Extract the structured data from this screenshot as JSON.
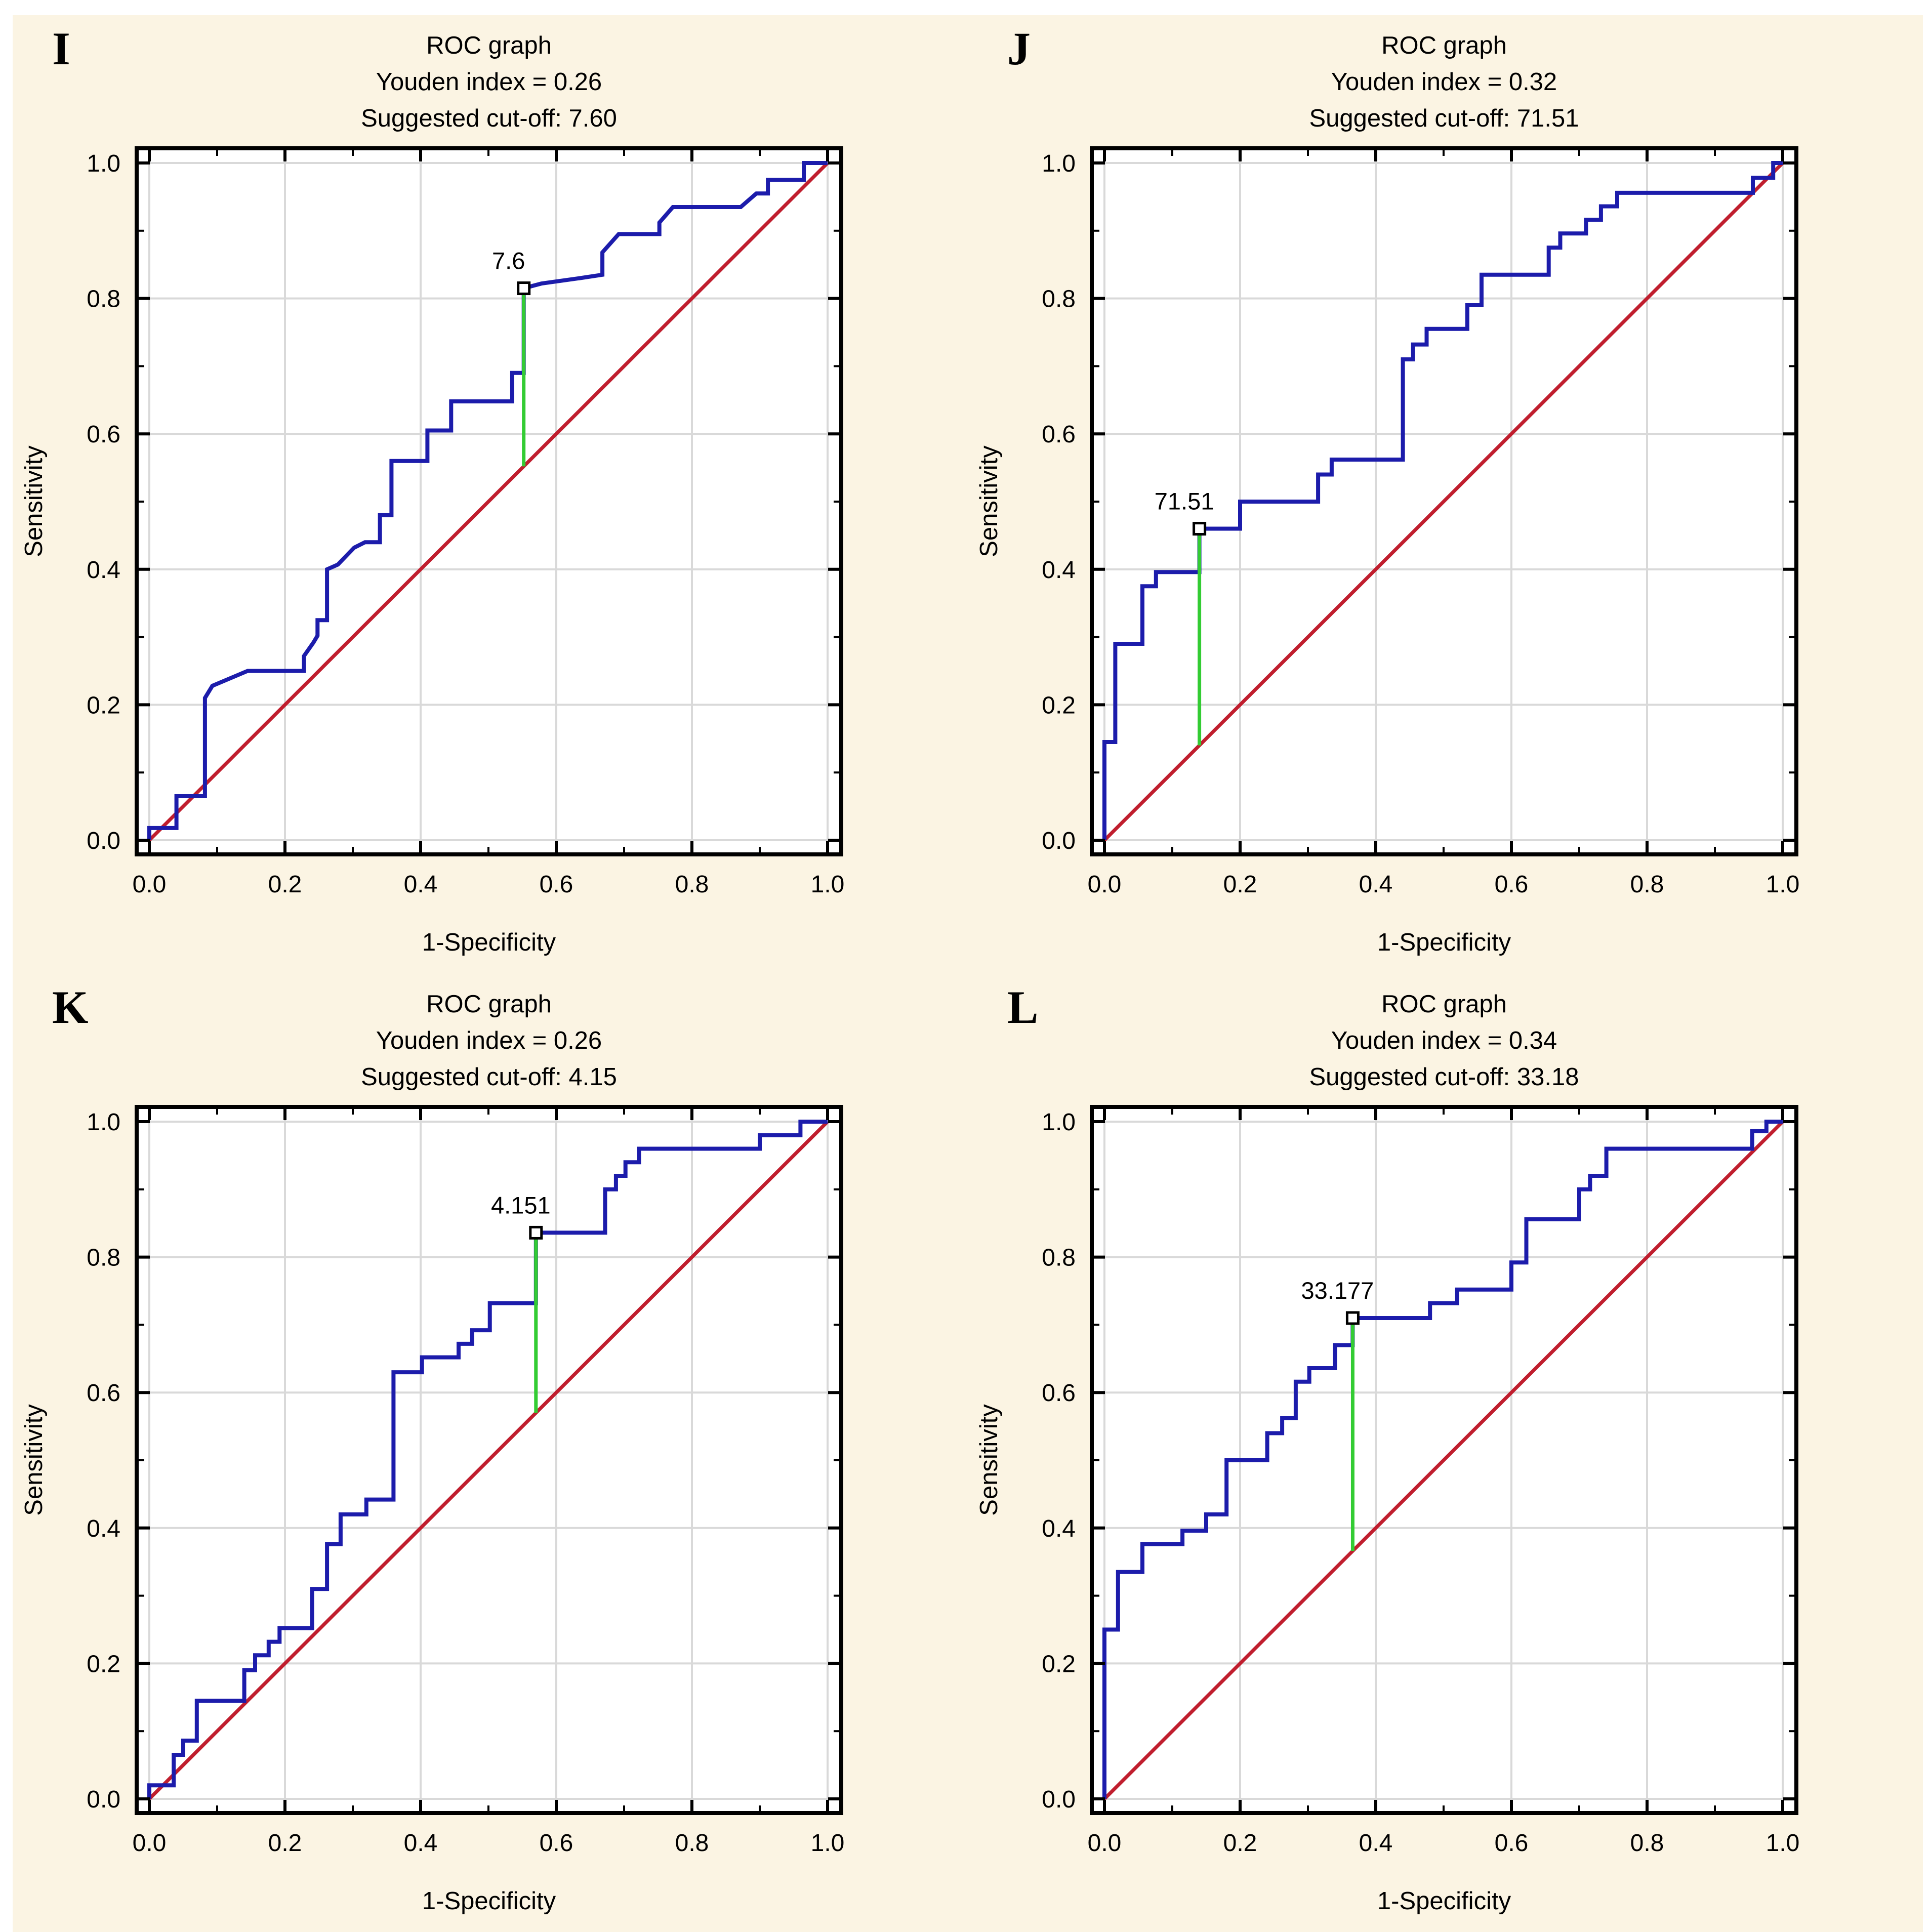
{
  "page": {
    "background": "#ffffff",
    "panel_background": "#FBF4E3"
  },
  "colors": {
    "roc_curve": "#1C1CAB",
    "diagonal": "#C01E2E",
    "cutoff_line": "#33CC33",
    "grid": "#D9D9D9",
    "frame": "#000000",
    "plot_background": "#FFFFFF",
    "marker_fill": "#FFFFFF",
    "text": "#000000"
  },
  "axes": {
    "x_label": "1-Specificity",
    "y_label": "Sensitivity",
    "major_ticks": [
      0.0,
      0.2,
      0.4,
      0.6,
      0.8,
      1.0
    ],
    "minor_step": 0.1,
    "xlim": [
      0,
      1
    ],
    "ylim": [
      0,
      1
    ],
    "grid": "on"
  },
  "chart_data": [
    {
      "type": "line",
      "panel_label": "I",
      "title": "ROC graph",
      "subtitle_youden": "Youden index = 0.26",
      "subtitle_cutoff": "Suggested cut-off: 7.60",
      "xlabel": "1-Specificity",
      "ylabel": "Sensitivity",
      "xlim": [
        0,
        1
      ],
      "ylim": [
        0,
        1
      ],
      "cutoff_point_label": "7.6",
      "cutoff_point": {
        "x": 0.552,
        "y": 0.815
      },
      "cutoff_line": {
        "x": 0.552,
        "y_from": 0.552,
        "y_to": 0.815
      },
      "diagonal": [
        [
          0,
          0
        ],
        [
          1,
          1
        ]
      ],
      "roc_points": [
        [
          0,
          0
        ],
        [
          0,
          0.018
        ],
        [
          0.04,
          0.018
        ],
        [
          0.04,
          0.065
        ],
        [
          0.082,
          0.065
        ],
        [
          0.082,
          0.21
        ],
        [
          0.093,
          0.228
        ],
        [
          0.145,
          0.25
        ],
        [
          0.228,
          0.25
        ],
        [
          0.228,
          0.272
        ],
        [
          0.242,
          0.292
        ],
        [
          0.248,
          0.302
        ],
        [
          0.248,
          0.325
        ],
        [
          0.262,
          0.325
        ],
        [
          0.262,
          0.4
        ],
        [
          0.278,
          0.407
        ],
        [
          0.302,
          0.432
        ],
        [
          0.318,
          0.44
        ],
        [
          0.34,
          0.44
        ],
        [
          0.34,
          0.48
        ],
        [
          0.357,
          0.48
        ],
        [
          0.357,
          0.56
        ],
        [
          0.41,
          0.56
        ],
        [
          0.41,
          0.605
        ],
        [
          0.445,
          0.605
        ],
        [
          0.445,
          0.648
        ],
        [
          0.535,
          0.648
        ],
        [
          0.535,
          0.69
        ],
        [
          0.552,
          0.69
        ],
        [
          0.552,
          0.815
        ],
        [
          0.578,
          0.822
        ],
        [
          0.635,
          0.83
        ],
        [
          0.668,
          0.835
        ],
        [
          0.668,
          0.868
        ],
        [
          0.692,
          0.895
        ],
        [
          0.752,
          0.895
        ],
        [
          0.752,
          0.912
        ],
        [
          0.772,
          0.935
        ],
        [
          0.872,
          0.935
        ],
        [
          0.895,
          0.955
        ],
        [
          0.912,
          0.955
        ],
        [
          0.912,
          0.975
        ],
        [
          0.965,
          0.975
        ],
        [
          0.965,
          1
        ],
        [
          1,
          1
        ]
      ]
    },
    {
      "type": "line",
      "panel_label": "J",
      "title": "ROC graph",
      "subtitle_youden": "Youden index = 0.32",
      "subtitle_cutoff": "Suggested cut-off: 71.51",
      "xlabel": "1-Specificity",
      "ylabel": "Sensitivity",
      "xlim": [
        0,
        1
      ],
      "ylim": [
        0,
        1
      ],
      "cutoff_point_label": "71.51",
      "cutoff_point": {
        "x": 0.14,
        "y": 0.46
      },
      "cutoff_line": {
        "x": 0.14,
        "y_from": 0.14,
        "y_to": 0.46
      },
      "diagonal": [
        [
          0,
          0
        ],
        [
          1,
          1
        ]
      ],
      "roc_points": [
        [
          0,
          0
        ],
        [
          0,
          0.145
        ],
        [
          0.016,
          0.145
        ],
        [
          0.016,
          0.29
        ],
        [
          0.056,
          0.29
        ],
        [
          0.056,
          0.375
        ],
        [
          0.076,
          0.375
        ],
        [
          0.076,
          0.396
        ],
        [
          0.14,
          0.396
        ],
        [
          0.14,
          0.46
        ],
        [
          0.2,
          0.46
        ],
        [
          0.2,
          0.5
        ],
        [
          0.315,
          0.5
        ],
        [
          0.315,
          0.54
        ],
        [
          0.335,
          0.54
        ],
        [
          0.335,
          0.562
        ],
        [
          0.44,
          0.562
        ],
        [
          0.44,
          0.71
        ],
        [
          0.455,
          0.71
        ],
        [
          0.455,
          0.732
        ],
        [
          0.475,
          0.732
        ],
        [
          0.475,
          0.755
        ],
        [
          0.535,
          0.755
        ],
        [
          0.535,
          0.79
        ],
        [
          0.556,
          0.79
        ],
        [
          0.556,
          0.835
        ],
        [
          0.655,
          0.835
        ],
        [
          0.655,
          0.875
        ],
        [
          0.672,
          0.875
        ],
        [
          0.672,
          0.896
        ],
        [
          0.71,
          0.896
        ],
        [
          0.71,
          0.916
        ],
        [
          0.732,
          0.916
        ],
        [
          0.732,
          0.936
        ],
        [
          0.756,
          0.936
        ],
        [
          0.756,
          0.956
        ],
        [
          0.956,
          0.956
        ],
        [
          0.956,
          0.978
        ],
        [
          0.986,
          0.978
        ],
        [
          0.986,
          1
        ],
        [
          1,
          1
        ]
      ]
    },
    {
      "type": "line",
      "panel_label": "K",
      "title": "ROC graph",
      "subtitle_youden": "Youden index = 0.26",
      "subtitle_cutoff": "Suggested cut-off: 4.15",
      "xlabel": "1-Specificity",
      "ylabel": "Sensitivity",
      "xlim": [
        0,
        1
      ],
      "ylim": [
        0,
        1
      ],
      "cutoff_point_label": "4.151",
      "cutoff_point": {
        "x": 0.57,
        "y": 0.836
      },
      "cutoff_line": {
        "x": 0.57,
        "y_from": 0.57,
        "y_to": 0.836
      },
      "diagonal": [
        [
          0,
          0
        ],
        [
          1,
          1
        ]
      ],
      "roc_points": [
        [
          0,
          0
        ],
        [
          0,
          0.02
        ],
        [
          0.036,
          0.02
        ],
        [
          0.036,
          0.065
        ],
        [
          0.05,
          0.065
        ],
        [
          0.05,
          0.086
        ],
        [
          0.07,
          0.086
        ],
        [
          0.07,
          0.145
        ],
        [
          0.14,
          0.145
        ],
        [
          0.14,
          0.19
        ],
        [
          0.156,
          0.19
        ],
        [
          0.156,
          0.212
        ],
        [
          0.176,
          0.212
        ],
        [
          0.176,
          0.232
        ],
        [
          0.192,
          0.232
        ],
        [
          0.192,
          0.252
        ],
        [
          0.24,
          0.252
        ],
        [
          0.24,
          0.31
        ],
        [
          0.262,
          0.31
        ],
        [
          0.262,
          0.376
        ],
        [
          0.282,
          0.376
        ],
        [
          0.282,
          0.42
        ],
        [
          0.32,
          0.42
        ],
        [
          0.32,
          0.442
        ],
        [
          0.36,
          0.442
        ],
        [
          0.36,
          0.63
        ],
        [
          0.402,
          0.63
        ],
        [
          0.402,
          0.652
        ],
        [
          0.456,
          0.652
        ],
        [
          0.456,
          0.672
        ],
        [
          0.476,
          0.672
        ],
        [
          0.476,
          0.692
        ],
        [
          0.502,
          0.692
        ],
        [
          0.502,
          0.732
        ],
        [
          0.57,
          0.732
        ],
        [
          0.57,
          0.836
        ],
        [
          0.672,
          0.836
        ],
        [
          0.672,
          0.9
        ],
        [
          0.688,
          0.9
        ],
        [
          0.688,
          0.92
        ],
        [
          0.702,
          0.92
        ],
        [
          0.702,
          0.94
        ],
        [
          0.722,
          0.94
        ],
        [
          0.722,
          0.96
        ],
        [
          0.9,
          0.96
        ],
        [
          0.9,
          0.98
        ],
        [
          0.96,
          0.98
        ],
        [
          0.96,
          1
        ],
        [
          1,
          1
        ]
      ]
    },
    {
      "type": "line",
      "panel_label": "L",
      "title": "ROC graph",
      "subtitle_youden": "Youden index = 0.34",
      "subtitle_cutoff": "Suggested cut-off: 33.18",
      "xlabel": "1-Specificity",
      "ylabel": "Sensitivity",
      "xlim": [
        0,
        1
      ],
      "ylim": [
        0,
        1
      ],
      "cutoff_point_label": "33.177",
      "cutoff_point": {
        "x": 0.366,
        "y": 0.71
      },
      "cutoff_line": {
        "x": 0.366,
        "y_from": 0.366,
        "y_to": 0.71
      },
      "diagonal": [
        [
          0,
          0
        ],
        [
          1,
          1
        ]
      ],
      "roc_points": [
        [
          0,
          0
        ],
        [
          0,
          0.25
        ],
        [
          0.02,
          0.25
        ],
        [
          0.02,
          0.335
        ],
        [
          0.056,
          0.335
        ],
        [
          0.056,
          0.376
        ],
        [
          0.115,
          0.376
        ],
        [
          0.115,
          0.396
        ],
        [
          0.15,
          0.396
        ],
        [
          0.15,
          0.42
        ],
        [
          0.18,
          0.42
        ],
        [
          0.18,
          0.5
        ],
        [
          0.24,
          0.5
        ],
        [
          0.24,
          0.54
        ],
        [
          0.262,
          0.54
        ],
        [
          0.262,
          0.562
        ],
        [
          0.282,
          0.562
        ],
        [
          0.282,
          0.616
        ],
        [
          0.302,
          0.616
        ],
        [
          0.302,
          0.636
        ],
        [
          0.34,
          0.636
        ],
        [
          0.34,
          0.67
        ],
        [
          0.366,
          0.67
        ],
        [
          0.366,
          0.71
        ],
        [
          0.48,
          0.71
        ],
        [
          0.48,
          0.732
        ],
        [
          0.52,
          0.732
        ],
        [
          0.52,
          0.752
        ],
        [
          0.6,
          0.752
        ],
        [
          0.6,
          0.792
        ],
        [
          0.622,
          0.792
        ],
        [
          0.622,
          0.856
        ],
        [
          0.7,
          0.856
        ],
        [
          0.7,
          0.9
        ],
        [
          0.716,
          0.9
        ],
        [
          0.716,
          0.92
        ],
        [
          0.74,
          0.92
        ],
        [
          0.74,
          0.96
        ],
        [
          0.955,
          0.96
        ],
        [
          0.955,
          0.986
        ],
        [
          0.976,
          0.986
        ],
        [
          0.976,
          1
        ],
        [
          1,
          1
        ]
      ]
    }
  ]
}
